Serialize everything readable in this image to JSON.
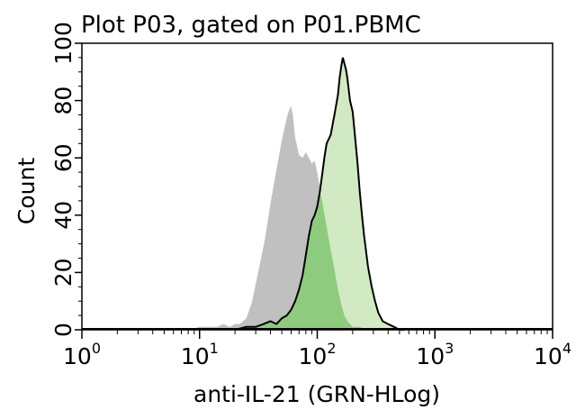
{
  "chart_data": {
    "type": "area",
    "title": "Plot P03, gated on P01.PBMC",
    "xlabel": "anti-IL-21 (GRN-HLog)",
    "ylabel": "Count",
    "x_scale": "log",
    "xlim": [
      1,
      10000
    ],
    "ylim": [
      0,
      100
    ],
    "x_ticks": [
      {
        "base": "10",
        "exp": "0"
      },
      {
        "base": "10",
        "exp": "1"
      },
      {
        "base": "10",
        "exp": "2"
      },
      {
        "base": "10",
        "exp": "3"
      },
      {
        "base": "10",
        "exp": "4"
      }
    ],
    "y_ticks": [
      "0",
      "20",
      "40",
      "60",
      "80",
      "100"
    ],
    "grid": false,
    "legend": "none",
    "series": [
      {
        "color": "#c0c0c0",
        "style": "filled, no outline",
        "x": [
          8,
          10,
          12,
          14,
          16,
          18,
          20,
          22,
          25,
          28,
          30,
          33,
          36,
          40,
          45,
          50,
          55,
          58,
          60,
          62,
          65,
          70,
          75,
          80,
          85,
          90,
          95,
          100,
          110,
          120,
          130,
          140,
          150,
          160,
          170,
          180,
          190,
          200,
          230,
          260,
          300
        ],
        "y": [
          0,
          1,
          1,
          1,
          2,
          1,
          2,
          2,
          4,
          10,
          16,
          24,
          32,
          44,
          56,
          66,
          74,
          77,
          78,
          75,
          67,
          61,
          60,
          62,
          60,
          58,
          59,
          55,
          45,
          36,
          28,
          21,
          14,
          9,
          5,
          3,
          2,
          1,
          1,
          0,
          0
        ]
      },
      {
        "color": "#c9e6b8",
        "style": "filled, black outline",
        "x": [
          20,
          25,
          30,
          35,
          40,
          45,
          50,
          55,
          60,
          65,
          70,
          75,
          80,
          85,
          90,
          95,
          100,
          105,
          110,
          115,
          120,
          130,
          140,
          150,
          155,
          160,
          165,
          170,
          175,
          180,
          185,
          190,
          200,
          210,
          220,
          230,
          240,
          250,
          270,
          290,
          310,
          330,
          360,
          400,
          450,
          500,
          550
        ],
        "y": [
          0,
          1,
          1,
          2,
          3,
          2,
          4,
          5,
          7,
          10,
          14,
          19,
          26,
          33,
          38,
          40,
          43,
          48,
          54,
          60,
          65,
          68,
          75,
          82,
          88,
          92,
          95,
          93,
          91,
          88,
          84,
          80,
          76,
          67,
          58,
          48,
          40,
          33,
          22,
          15,
          10,
          6,
          3,
          2,
          1,
          0,
          0
        ]
      }
    ]
  }
}
